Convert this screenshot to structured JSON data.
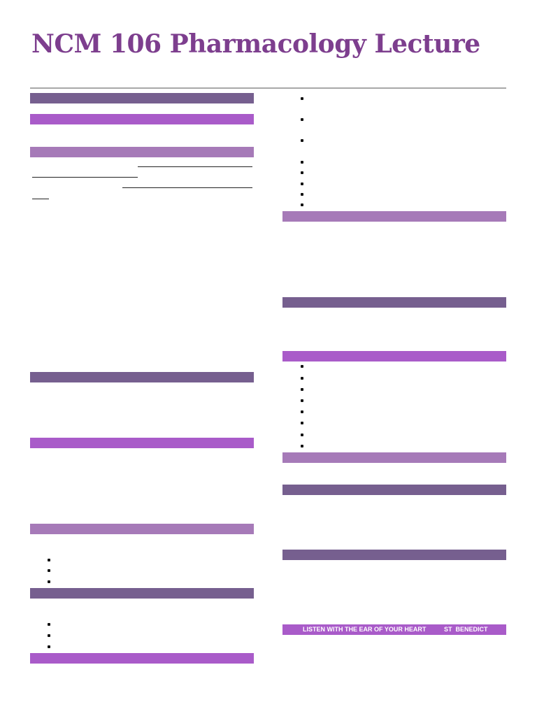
{
  "header": {
    "title": "NCM 106 Pharmacology Lecture"
  },
  "footer": {
    "quote": "LISTEN WITH THE EAR OF YOUR HEART",
    "author": "ST  BENEDICT"
  }
}
